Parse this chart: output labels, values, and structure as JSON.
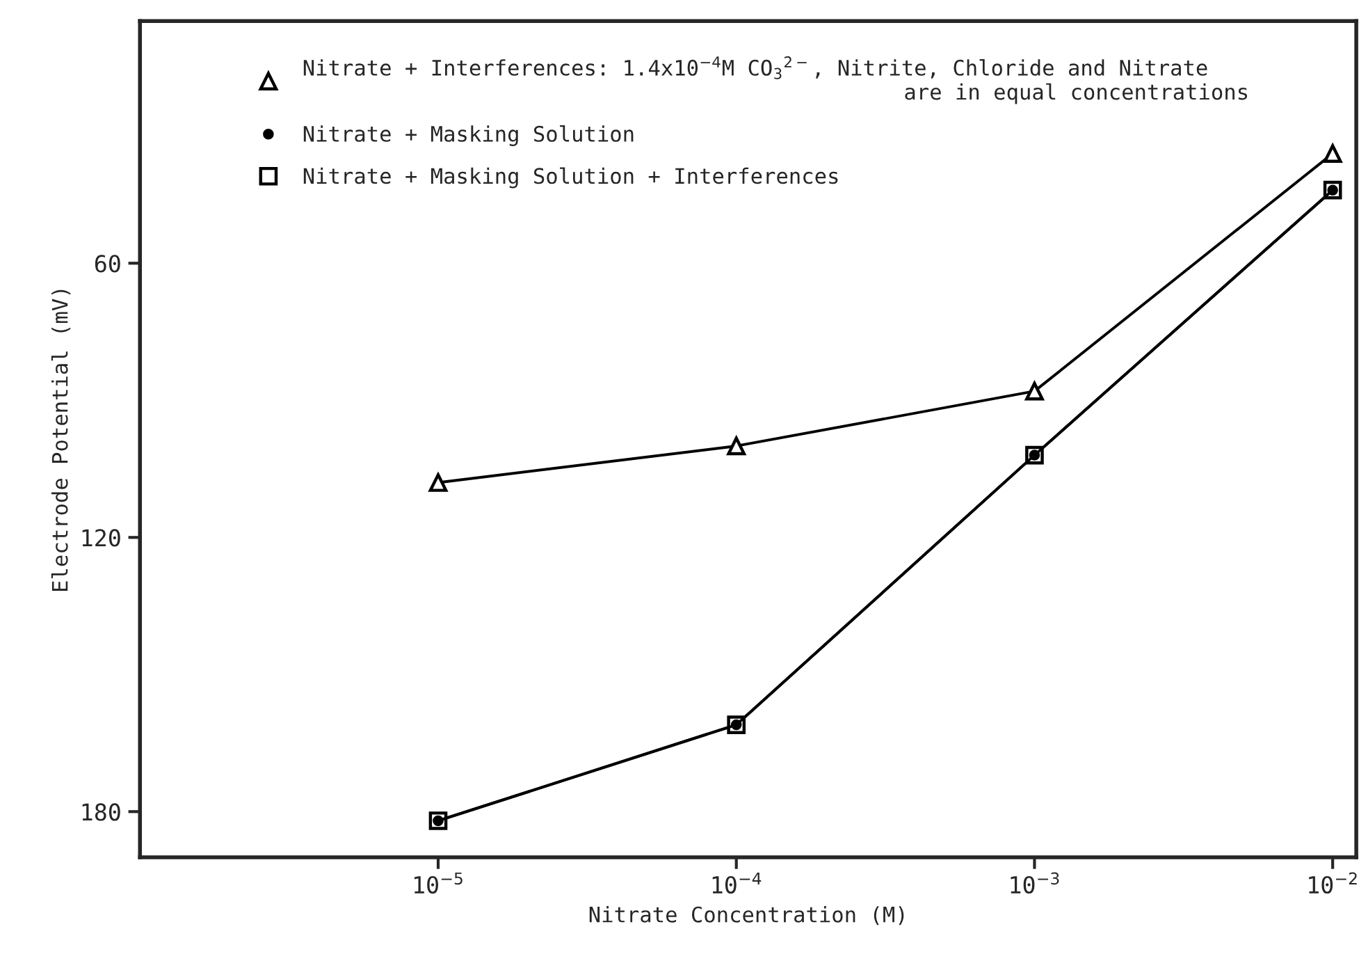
{
  "chart_data": {
    "type": "line",
    "xlabel": "Nitrate Concentration (M)",
    "ylabel": "Electrode Potential (mV)",
    "x": [
      1e-05,
      0.0001,
      0.001,
      0.01
    ],
    "series": [
      {
        "name": "Nitrate + Interferences: 1.4x10$^{−4}$M CO$_{3}$$^{2−}$, Nitrite, Chloride and Nitrate\n                                               are in equal concentrations",
        "color": "#000000",
        "marker": "triangle",
        "values": [
          108,
          100,
          88,
          36
        ]
      },
      {
        "name": "Nitrate + Masking Solution",
        "color": "#000000",
        "marker": "circle",
        "values": [
          182,
          161,
          102,
          44
        ]
      },
      {
        "name": "Nitrate + Masking Solution + Interferences",
        "color": "#000000",
        "marker": "square",
        "values": [
          182,
          161,
          102,
          44
        ]
      }
    ],
    "log": "x",
    "xlim": [
      1e-06,
      0.012
    ],
    "ylim": [
      190,
      7
    ],
    "xticks": [
      {
        "value": 1e-05,
        "label": "10$^{−5}$"
      },
      {
        "value": 0.0001,
        "label": "10$^{−4}$"
      },
      {
        "value": 0.001,
        "label": "10$^{−3}$"
      },
      {
        "value": 0.01,
        "label": "10$^{−2}$"
      }
    ],
    "yticks": [
      60,
      120,
      180
    ],
    "grid": false,
    "legend": "top",
    "line_style": "solid"
  }
}
